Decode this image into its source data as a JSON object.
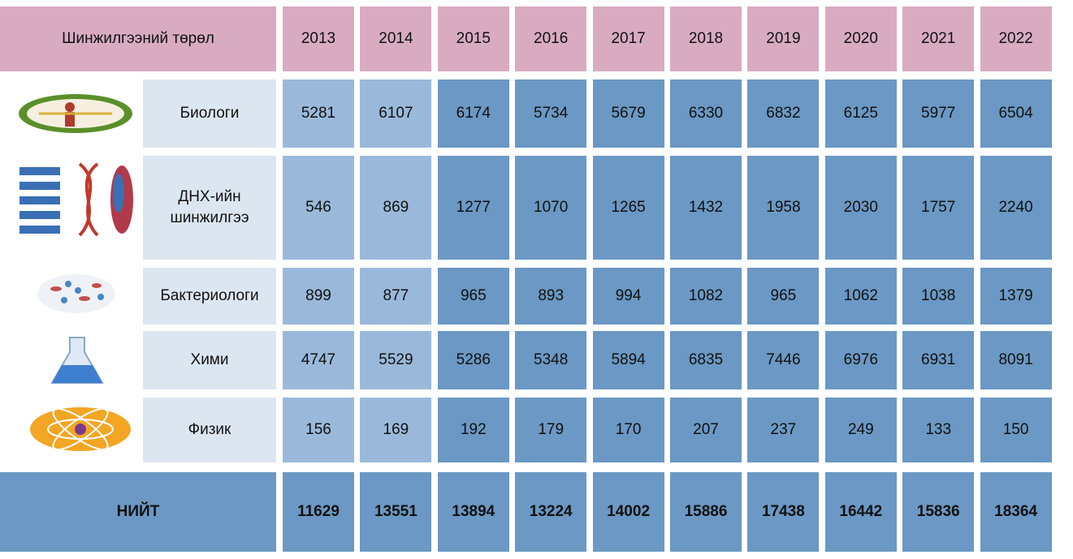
{
  "table": {
    "header": {
      "title": "Шинжилгээний төрөл",
      "years": [
        "2013",
        "2014",
        "2015",
        "2016",
        "2017",
        "2018",
        "2019",
        "2020",
        "2021",
        "2022"
      ]
    },
    "rows": [
      {
        "label": "Биологи",
        "values": [
          "5281",
          "6107",
          "6174",
          "5734",
          "5679",
          "6330",
          "6832",
          "6125",
          "5977",
          "6504"
        ]
      },
      {
        "label": "ДНХ-ийн шинжилгээ",
        "values": [
          "546",
          "869",
          "1277",
          "1070",
          "1265",
          "1432",
          "1958",
          "2030",
          "1757",
          "2240"
        ]
      },
      {
        "label": "Бактериологи",
        "values": [
          "899",
          "877",
          "965",
          "893",
          "994",
          "1082",
          "965",
          "1062",
          "1038",
          "1379"
        ]
      },
      {
        "label": "Хими",
        "values": [
          "4747",
          "5529",
          "5286",
          "5348",
          "5894",
          "6835",
          "7446",
          "6976",
          "6931",
          "8091"
        ]
      },
      {
        "label": "Физик",
        "values": [
          "156",
          "169",
          "192",
          "179",
          "170",
          "207",
          "237",
          "249",
          "133",
          "150"
        ]
      }
    ],
    "total": {
      "label": "НИЙТ",
      "values": [
        "11629",
        "13551",
        "13894",
        "13224",
        "14002",
        "15886",
        "17438",
        "16442",
        "15836",
        "18364"
      ]
    }
  }
}
